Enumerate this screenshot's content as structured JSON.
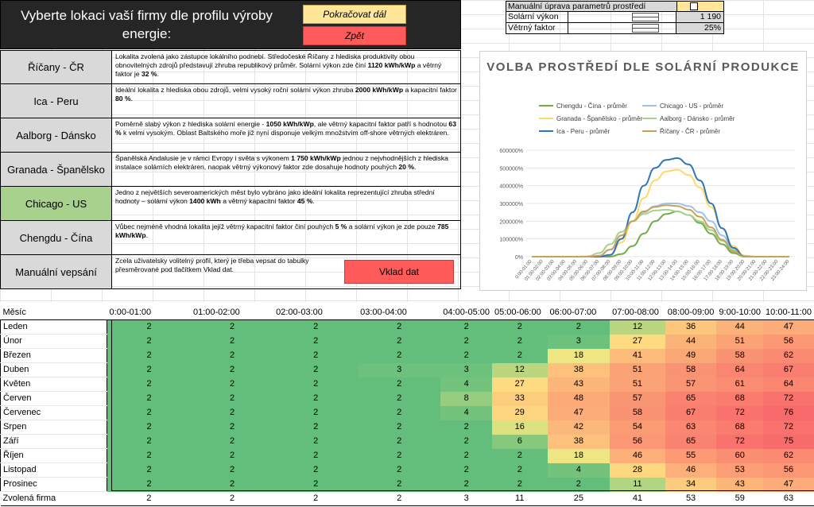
{
  "header": {
    "title": "Vyberte lokaci vaší firmy dle profilu výroby energie:",
    "continue_label": "Pokračovat dál",
    "back_label": "Zpět"
  },
  "locations": [
    {
      "name": "Říčany - ČR",
      "active": false,
      "desc": [
        {
          "t": "Lokalita zvolená jako zástupce lokálního podnebí. Středočeské Říčany z hlediska produktivity obou obnovitelných zdrojů představují zhruba republikový průměr. Solární výkon zde činí "
        },
        {
          "t": "1120 kWh/kWp",
          "b": true
        },
        {
          "t": " a větrný faktor je "
        },
        {
          "t": "32 %",
          "b": true
        },
        {
          "t": "."
        }
      ]
    },
    {
      "name": "Ica - Peru",
      "active": false,
      "desc": [
        {
          "t": "Ideální lokalita z hlediska obou zdrojů, velmi vysoký roční solární výkon zhruba "
        },
        {
          "t": "2000 kWh/kWp",
          "b": true
        },
        {
          "t": " a kapacitní faktor "
        },
        {
          "t": "80 %",
          "b": true
        },
        {
          "t": "."
        }
      ]
    },
    {
      "name": "Aalborg - Dánsko",
      "active": false,
      "desc": [
        {
          "t": "Poměrně slabý výkon z hlediska solární energie - "
        },
        {
          "t": "1050 kWh/kWp",
          "b": true
        },
        {
          "t": ", ale větrný kapacitní faktor patří s hodnotou "
        },
        {
          "t": "63 %",
          "b": true
        },
        {
          "t": " k velmi vysokým. Oblast Baltského moře již nyní disponuje velkým množstvím off-shore větrných elektráren."
        }
      ]
    },
    {
      "name": "Granada - Španělsko",
      "active": false,
      "desc": [
        {
          "t": "Španělská Andalusie je v rámci Evropy i světa s výkonem "
        },
        {
          "t": "1 750 kWh/kWp",
          "b": true
        },
        {
          "t": " jednou z nejvhodnějších z hlediska instalace solárních elektráren, naopak větrný výkonový faktor zde dosahuje hodnoty pouhých "
        },
        {
          "t": "20 %",
          "b": true
        },
        {
          "t": "."
        }
      ]
    },
    {
      "name": "Chicago - US",
      "active": true,
      "desc": [
        {
          "t": "Jedno z největších severoamerických měst bylo vybráno jako ideální lokalita reprezentující zhruba střední hodnoty – solární výkon "
        },
        {
          "t": "1400 kWh",
          "b": true
        },
        {
          "t": " a větrný kapacitní faktor "
        },
        {
          "t": "45 %",
          "b": true
        },
        {
          "t": "."
        }
      ]
    },
    {
      "name": "Chengdu - Čína",
      "active": false,
      "desc": [
        {
          "t": "Vůbec nejméně vhodná lokalita jejíž větrný kapacitní faktor činí pouhých "
        },
        {
          "t": "5 %",
          "b": true
        },
        {
          "t": " a solární výkon je zde pouze "
        },
        {
          "t": "785 kWh/kWp",
          "b": true
        },
        {
          "t": "."
        }
      ]
    },
    {
      "name": "Manuální vepsání",
      "active": false,
      "desc": [
        {
          "t": "Zcela uživatelsky volitelný profil, který je třeba vepsat do tabulky přesměrované pod tlačítkem Vklad dat."
        }
      ]
    }
  ],
  "vklad_label": "Vklad dat",
  "manual": {
    "header": "Manuální úprava parametrů prostředí",
    "checked": false,
    "rows": [
      {
        "label": "Solární výkon",
        "value": "1 190"
      },
      {
        "label": "Větrný faktor",
        "value": "25%"
      }
    ]
  },
  "chart_data": {
    "type": "line",
    "title": "VOLBA PROSTŘEDÍ DLE SOLÁRNÍ PRODUKCE",
    "ylim": [
      0,
      600000
    ],
    "yticks": [
      "0%",
      "100000%",
      "200000%",
      "300000%",
      "400000%",
      "500000%",
      "600000%"
    ],
    "categories": [
      "0:00-01:00",
      "01:00-02:00",
      "02:00-03:00",
      "03:00-04:00",
      "04:00-05:00",
      "05:00-06:00",
      "06:00-07:00",
      "07:00-08:00",
      "08:00-09:00",
      "09:00-10:00",
      "10:00-11:00",
      "11:00-12:00",
      "12:00-13:00",
      "13:00-14:00",
      "14:00-15:00",
      "15:00-16:00",
      "16:00-17:00",
      "17:00-18:00",
      "18:00-19:00",
      "19:00-20:00",
      "20:00-21:00",
      "21:00-22:00",
      "22:00-23:00",
      "23:00-24:00"
    ],
    "series": [
      {
        "name": "Chengdu - Čína - průměr",
        "color": "#70ad47",
        "values": [
          0,
          0,
          0,
          0,
          0,
          0,
          0,
          0,
          15000,
          60000,
          130000,
          200000,
          240000,
          255000,
          235000,
          190000,
          130000,
          70000,
          20000,
          0,
          0,
          0,
          0,
          0
        ]
      },
      {
        "name": "Chicago - US - průměr",
        "color": "#9dc3e6",
        "values": [
          0,
          0,
          0,
          0,
          0,
          0,
          5000,
          40000,
          120000,
          200000,
          250000,
          285000,
          300000,
          300000,
          285000,
          250000,
          200000,
          120000,
          40000,
          5000,
          0,
          0,
          0,
          0
        ]
      },
      {
        "name": "Granada - Španělsko - průměr",
        "color": "#ffd966",
        "values": [
          0,
          0,
          0,
          0,
          0,
          0,
          0,
          10000,
          80000,
          200000,
          330000,
          430000,
          480000,
          490000,
          460000,
          390000,
          280000,
          160000,
          60000,
          5000,
          0,
          0,
          0,
          0
        ]
      },
      {
        "name": "Aalborg - Dánsko - průměr",
        "color": "#a9d18e",
        "values": [
          0,
          0,
          0,
          0,
          0,
          2000,
          20000,
          70000,
          140000,
          200000,
          240000,
          260000,
          265000,
          255000,
          235000,
          200000,
          150000,
          90000,
          35000,
          5000,
          0,
          0,
          0,
          0
        ]
      },
      {
        "name": "Ica - Peru - průměr",
        "color": "#2e75b6",
        "values": [
          0,
          0,
          0,
          0,
          0,
          0,
          0,
          10000,
          100000,
          250000,
          400000,
          500000,
          545000,
          555000,
          520000,
          430000,
          300000,
          160000,
          50000,
          0,
          0,
          0,
          0,
          0
        ]
      },
      {
        "name": "Říčany - ČR - průměr",
        "color": "#c9a15a",
        "values": [
          0,
          0,
          0,
          0,
          0,
          0,
          5000,
          40000,
          120000,
          200000,
          255000,
          280000,
          290000,
          285000,
          265000,
          225000,
          165000,
          95000,
          30000,
          0,
          0,
          0,
          0,
          0
        ]
      }
    ]
  },
  "table": {
    "header_label": "Měsíc",
    "columns": [
      "0:00-01:00",
      "01:00-02:00",
      "02:00-03:00",
      "03:00-04:00",
      "04:00-05:00",
      "05:00-06:00",
      "06:00-07:00",
      "07:00-08:00",
      "08:00-09:00",
      "9:00-10:00",
      "10:00-11:00"
    ],
    "rows": [
      {
        "month": "Leden",
        "values": [
          2,
          2,
          2,
          2,
          2,
          2,
          2,
          12,
          36,
          44,
          47
        ]
      },
      {
        "month": "Únor",
        "values": [
          2,
          2,
          2,
          2,
          2,
          2,
          3,
          27,
          44,
          51,
          56
        ]
      },
      {
        "month": "Březen",
        "values": [
          2,
          2,
          2,
          2,
          2,
          2,
          18,
          41,
          49,
          58,
          62
        ]
      },
      {
        "month": "Duben",
        "values": [
          2,
          2,
          2,
          3,
          3,
          12,
          38,
          51,
          58,
          64,
          67
        ]
      },
      {
        "month": "Květen",
        "values": [
          2,
          2,
          2,
          2,
          4,
          27,
          43,
          51,
          57,
          61,
          64
        ]
      },
      {
        "month": "Červen",
        "values": [
          2,
          2,
          2,
          2,
          8,
          33,
          48,
          57,
          65,
          68,
          72
        ]
      },
      {
        "month": "Červenec",
        "values": [
          2,
          2,
          2,
          2,
          4,
          29,
          47,
          58,
          67,
          72,
          76
        ]
      },
      {
        "month": "Srpen",
        "values": [
          2,
          2,
          2,
          2,
          2,
          16,
          42,
          54,
          63,
          68,
          72
        ]
      },
      {
        "month": "Září",
        "values": [
          2,
          2,
          2,
          2,
          2,
          6,
          38,
          56,
          65,
          72,
          75
        ]
      },
      {
        "month": "Říjen",
        "values": [
          2,
          2,
          2,
          2,
          2,
          2,
          18,
          46,
          55,
          60,
          62
        ]
      },
      {
        "month": "Listopad",
        "values": [
          2,
          2,
          2,
          2,
          2,
          2,
          4,
          28,
          46,
          53,
          56
        ]
      },
      {
        "month": "Prosinec",
        "values": [
          2,
          2,
          2,
          2,
          2,
          2,
          2,
          11,
          34,
          43,
          47
        ]
      }
    ],
    "footer": {
      "label": "Zvolená firma",
      "values": [
        2,
        2,
        2,
        2,
        3,
        11,
        25,
        41,
        53,
        59,
        63
      ]
    }
  }
}
